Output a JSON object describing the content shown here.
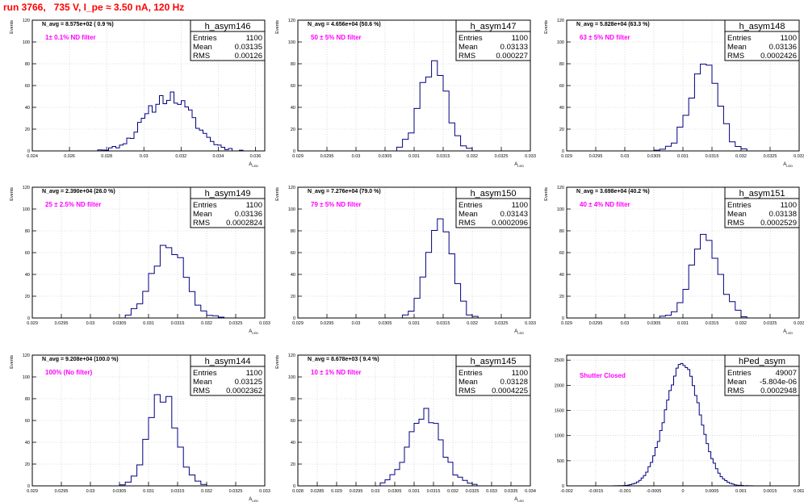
{
  "header": {
    "run_info": "run 3766,   735 V, I_pe ≈ 3.50 nA, 120 Hz"
  },
  "colors": {
    "histogram": "#000080",
    "annotation": "#ff00ff",
    "title": "#ff0000",
    "grid": "#c0c0c0",
    "frame": "#000000"
  },
  "chart_data": [
    {
      "type": "bar",
      "name": "h_asym146",
      "ylabel": "Events",
      "xlabel": "A_{LED}",
      "xlim": [
        0.024,
        0.0365
      ],
      "ylim": [
        0,
        120
      ],
      "xticks": [
        0.024,
        0.026,
        0.028,
        0.03,
        0.032,
        0.034,
        0.036
      ],
      "xtick_labels": [
        "0.024",
        "0.026",
        "0.028",
        "0.03",
        "0.032",
        "0.034",
        "0.036"
      ],
      "yticks": [
        0,
        20,
        40,
        60,
        80,
        100,
        120
      ],
      "avg_label": "N_avg = 8.575e+02 ( 0.9 %)",
      "filter_label": "1± 0.1% ND filter",
      "stats": [
        {
          "k": "Entries",
          "v": "1100"
        },
        {
          "k": "Mean",
          "v": "0.03135"
        },
        {
          "k": "RMS",
          "v": "0.00126"
        }
      ],
      "hist": {
        "mean": 0.03135,
        "sigma": 0.00126,
        "peak": 50,
        "bins": 64,
        "seed": 11
      }
    },
    {
      "type": "bar",
      "name": "h_asym147",
      "ylabel": "Events",
      "xlabel": "A_{LED}",
      "xlim": [
        0.029,
        0.033
      ],
      "ylim": [
        0,
        120
      ],
      "xticks": [
        0.029,
        0.0295,
        0.03,
        0.0305,
        0.031,
        0.0315,
        0.032,
        0.0325,
        0.033
      ],
      "xtick_labels": [
        "0.029",
        "0.0295",
        "0.03",
        "0.0305",
        "0.031",
        "0.0315",
        "0.032",
        "0.0325",
        "0.033"
      ],
      "yticks": [
        0,
        20,
        40,
        60,
        80,
        100,
        120
      ],
      "avg_label": "N_avg = 4.656e+04 (50.6 %)",
      "filter_label": "50 ± 5% ND filter",
      "stats": [
        {
          "k": "Entries",
          "v": "1100"
        },
        {
          "k": "Mean",
          "v": "0.03133"
        },
        {
          "k": "RMS",
          "v": "0.000227"
        }
      ],
      "hist": {
        "mean": 0.03133,
        "sigma": 0.000227,
        "peak": 78,
        "bins": 40,
        "seed": 22
      }
    },
    {
      "type": "bar",
      "name": "h_asym148",
      "ylabel": "Events",
      "xlabel": "A_{LED}",
      "xlim": [
        0.029,
        0.033
      ],
      "ylim": [
        0,
        120
      ],
      "xticks": [
        0.029,
        0.0295,
        0.03,
        0.0305,
        0.031,
        0.0315,
        0.032,
        0.0325,
        0.033
      ],
      "xtick_labels": [
        "0.029",
        "0.0295",
        "0.03",
        "0.0305",
        "0.031",
        "0.0315",
        "0.032",
        "0.0325",
        "0.033"
      ],
      "yticks": [
        0,
        20,
        40,
        60,
        80,
        100,
        120
      ],
      "avg_label": "N_avg = 5.828e+04 (63.3 %)",
      "filter_label": "63 ± 5% ND filter",
      "stats": [
        {
          "k": "Entries",
          "v": "1100"
        },
        {
          "k": "Mean",
          "v": "0.03136"
        },
        {
          "k": "RMS",
          "v": "0.0002426"
        }
      ],
      "hist": {
        "mean": 0.03136,
        "sigma": 0.0002426,
        "peak": 78,
        "bins": 40,
        "seed": 33
      }
    },
    {
      "type": "bar",
      "name": "h_asym149",
      "ylabel": "Events",
      "xlabel": "A_{LED}",
      "xlim": [
        0.029,
        0.033
      ],
      "ylim": [
        0,
        120
      ],
      "xticks": [
        0.029,
        0.0295,
        0.03,
        0.0305,
        0.031,
        0.0315,
        0.032,
        0.0325,
        0.033
      ],
      "xtick_labels": [
        "0.029",
        "0.0295",
        "0.03",
        "0.0305",
        "0.031",
        "0.0315",
        "0.032",
        "0.0325",
        "0.033"
      ],
      "yticks": [
        0,
        20,
        40,
        60,
        80,
        100,
        120
      ],
      "avg_label": "N_avg = 2.390e+04 (26.0 %)",
      "filter_label": "25 ± 2.5% ND filter",
      "stats": [
        {
          "k": "Entries",
          "v": "1100"
        },
        {
          "k": "Mean",
          "v": "0.03136"
        },
        {
          "k": "RMS",
          "v": "0.0002824"
        }
      ],
      "hist": {
        "mean": 0.03136,
        "sigma": 0.0002824,
        "peak": 66,
        "bins": 40,
        "seed": 44
      }
    },
    {
      "type": "bar",
      "name": "h_asym150",
      "ylabel": "Events",
      "xlabel": "A_{LED}",
      "xlim": [
        0.029,
        0.033
      ],
      "ylim": [
        0,
        120
      ],
      "xticks": [
        0.029,
        0.0295,
        0.03,
        0.0305,
        0.031,
        0.0315,
        0.032,
        0.0325,
        0.033
      ],
      "xtick_labels": [
        "0.029",
        "0.0295",
        "0.03",
        "0.0305",
        "0.031",
        "0.0315",
        "0.032",
        "0.0325",
        "0.033"
      ],
      "yticks": [
        0,
        20,
        40,
        60,
        80,
        100,
        120
      ],
      "avg_label": "N_avg = 7.276e+04 (79.0 %)",
      "filter_label": "79 ± 5% ND filter",
      "stats": [
        {
          "k": "Entries",
          "v": "1100"
        },
        {
          "k": "Mean",
          "v": "0.03143"
        },
        {
          "k": "RMS",
          "v": "0.0002096"
        }
      ],
      "hist": {
        "mean": 0.03143,
        "sigma": 0.0002096,
        "peak": 92,
        "bins": 40,
        "seed": 55
      }
    },
    {
      "type": "bar",
      "name": "h_asym151",
      "ylabel": "Events",
      "xlabel": "A_{LED}",
      "xlim": [
        0.029,
        0.033
      ],
      "ylim": [
        0,
        120
      ],
      "xticks": [
        0.029,
        0.0295,
        0.03,
        0.0305,
        0.031,
        0.0315,
        0.032,
        0.0325,
        0.033
      ],
      "xtick_labels": [
        "0.029",
        "0.0295",
        "0.03",
        "0.0305",
        "0.031",
        "0.0315",
        "0.032",
        "0.0325",
        "0.033"
      ],
      "yticks": [
        0,
        20,
        40,
        60,
        80,
        100,
        120
      ],
      "avg_label": "N_avg = 3.698e+04 (40.2 %)",
      "filter_label": "40 ± 4% ND filter",
      "stats": [
        {
          "k": "Entries",
          "v": "1100"
        },
        {
          "k": "Mean",
          "v": "0.03138"
        },
        {
          "k": "RMS",
          "v": "0.0002529"
        }
      ],
      "hist": {
        "mean": 0.03138,
        "sigma": 0.0002529,
        "peak": 70,
        "bins": 40,
        "seed": 66
      }
    },
    {
      "type": "bar",
      "name": "h_asym144",
      "ylabel": "Events",
      "xlabel": "A_{LED}",
      "xlim": [
        0.029,
        0.033
      ],
      "ylim": [
        0,
        120
      ],
      "xticks": [
        0.029,
        0.0295,
        0.03,
        0.0305,
        0.031,
        0.0315,
        0.032,
        0.0325,
        0.033
      ],
      "xtick_labels": [
        "0.029",
        "0.0295",
        "0.03",
        "0.0305",
        "0.031",
        "0.0315",
        "0.032",
        "0.0325",
        "0.033"
      ],
      "yticks": [
        0,
        20,
        40,
        60,
        80,
        100,
        120
      ],
      "avg_label": "N_avg = 9.208e+04 (100.0 %)",
      "filter_label": "100% (No filter)",
      "stats": [
        {
          "k": "Entries",
          "v": "1100"
        },
        {
          "k": "Mean",
          "v": "0.03125"
        },
        {
          "k": "RMS",
          "v": "0.0002362"
        }
      ],
      "hist": {
        "mean": 0.03125,
        "sigma": 0.0002362,
        "peak": 85,
        "bins": 40,
        "seed": 77
      }
    },
    {
      "type": "bar",
      "name": "h_asym145",
      "ylabel": "Events",
      "xlabel": "A_{LED}",
      "xlim": [
        0.028,
        0.034
      ],
      "ylim": [
        0,
        120
      ],
      "xticks": [
        0.028,
        0.0285,
        0.029,
        0.0295,
        0.03,
        0.0305,
        0.031,
        0.0315,
        0.032,
        0.0325,
        0.033,
        0.0335,
        0.034
      ],
      "xtick_labels": [
        "0.028",
        "0.0285",
        "0.029",
        "0.0295",
        "0.03",
        "0.0305",
        "0.031",
        "0.0315",
        "0.032",
        "0.0325",
        "0.033",
        "0.0335",
        "0.034"
      ],
      "yticks": [
        0,
        20,
        40,
        60,
        80,
        100,
        120
      ],
      "avg_label": "N_avg = 8.678e+03 ( 9.4 %)",
      "filter_label": "10 ± 1% ND filter",
      "stats": [
        {
          "k": "Entries",
          "v": "1100"
        },
        {
          "k": "Mean",
          "v": "0.03128"
        },
        {
          "k": "RMS",
          "v": "0.0004225"
        }
      ],
      "hist": {
        "mean": 0.03128,
        "sigma": 0.0004225,
        "peak": 68,
        "bins": 48,
        "seed": 88
      }
    },
    {
      "type": "bar",
      "name": "hPed_asym",
      "ylabel": "",
      "xlabel": "",
      "xlim": [
        -0.002,
        0.002
      ],
      "ylim": [
        0,
        2600
      ],
      "xticks": [
        -0.002,
        -0.0015,
        -0.001,
        -0.0005,
        0,
        0.0005,
        0.001,
        0.0015,
        0.002
      ],
      "xtick_labels": [
        "-0.002",
        "-0.0015",
        "-0.001",
        "-0.0005",
        "0",
        "0.0005",
        "0.001",
        "0.0015",
        "0.002"
      ],
      "yticks": [
        0,
        500,
        1000,
        1500,
        2000,
        2500
      ],
      "avg_label": "",
      "filter_label": "Shutter Closed",
      "stats": [
        {
          "k": "Entries",
          "v": "49007"
        },
        {
          "k": "Mean",
          "v": "-5.804e-06"
        },
        {
          "k": "RMS",
          "v": "0.0002948"
        }
      ],
      "hist": {
        "mean": -5.8e-06,
        "sigma": 0.0002948,
        "peak": 2430,
        "bins": 100,
        "seed": 99
      }
    }
  ]
}
